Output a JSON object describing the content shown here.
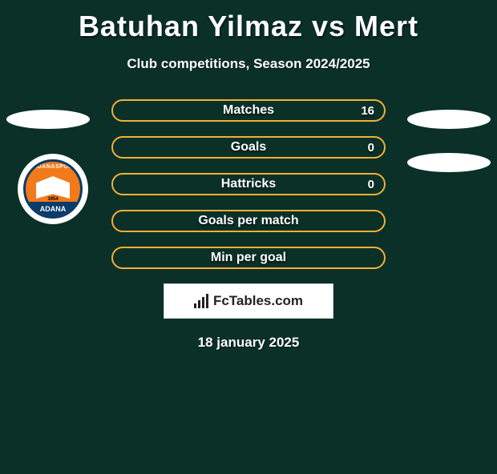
{
  "page": {
    "background_color": "#0a3028",
    "accent_color": "#f2b036",
    "text_color": "#ffffff"
  },
  "header": {
    "title": "Batuhan Yilmaz vs Mert",
    "subtitle": "Club competitions, Season 2024/2025",
    "title_fontsize": 36,
    "subtitle_fontsize": 17
  },
  "stats": [
    {
      "label": "Matches",
      "value_right": "16"
    },
    {
      "label": "Goals",
      "value_right": "0"
    },
    {
      "label": "Hattricks",
      "value_right": "0"
    },
    {
      "label": "Goals per match",
      "value_right": ""
    },
    {
      "label": "Min per goal",
      "value_right": ""
    }
  ],
  "ellipses": {
    "top_left": {
      "visible": true,
      "color": "#ffffff"
    },
    "top_right": {
      "visible": true,
      "color": "#ffffff"
    },
    "mid_right": {
      "visible": true,
      "color": "#ffffff"
    }
  },
  "club_badge": {
    "top_text": "ADANASPOR",
    "bottom_text": "ADANA",
    "year": "1954",
    "primary_color": "#f27a1a",
    "ring_color": "#0a3b6a"
  },
  "logo": {
    "text": "FcTables.com"
  },
  "date": "18 january 2025"
}
